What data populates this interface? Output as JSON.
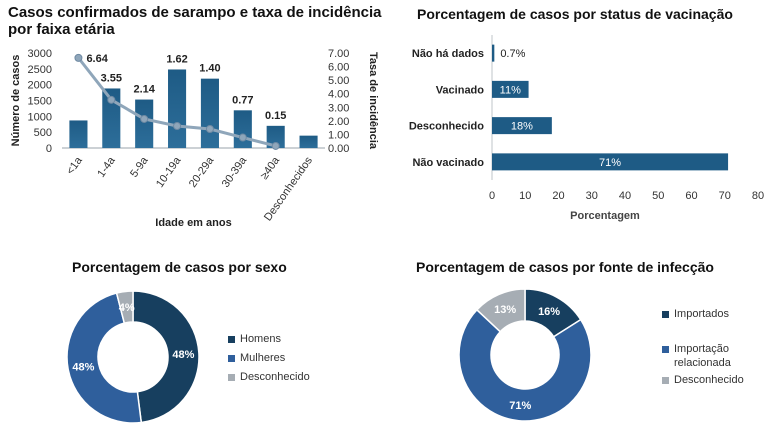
{
  "chart_data": [
    {
      "id": "age",
      "type": "bar",
      "title_lines": [
        "Casos confirmados de sarampo e  taxa de incidência",
        "por faixa etária"
      ],
      "categories": [
        "<1a",
        "1-4a",
        "5-9a",
        "10-19a",
        "20-29a",
        "30-39a",
        "≥40a",
        "Desconhecidos"
      ],
      "series": [
        {
          "kind": "bar",
          "axis": "left",
          "values": [
            870,
            1880,
            1530,
            2480,
            2190,
            1190,
            700,
            390
          ]
        },
        {
          "kind": "line",
          "axis": "right",
          "values": [
            6.64,
            3.55,
            2.14,
            1.62,
            1.4,
            0.77,
            0.15,
            null
          ],
          "labels": [
            "6.64",
            "3.55",
            "2.14",
            "1.62",
            "1.40",
            "0.77",
            "0.15",
            ""
          ]
        }
      ],
      "xlabel": "Idade em anos",
      "ylabel_left": "Número de casos",
      "ylabel_right": "Tasa de incidência",
      "ylim_left": [
        0,
        3000
      ],
      "yticks_left": [
        "0",
        "500",
        "1000",
        "1500",
        "2000",
        "2500",
        "3000"
      ],
      "ylim_right": [
        0,
        7
      ],
      "yticks_right": [
        "0.00",
        "1.00",
        "2.00",
        "3.00",
        "4.00",
        "5.00",
        "6.00",
        "7.00"
      ],
      "bar_color": "#1e5b85",
      "line_color": "#8fa6ba",
      "grid": false
    },
    {
      "id": "vacc",
      "type": "bar",
      "orientation": "horizontal",
      "title": "Porcentagem de casos por status de vacinação",
      "categories": [
        "Não há dados",
        "Vacinado",
        "Desconhecido",
        "Não vacinado"
      ],
      "values": [
        0.7,
        11,
        18,
        71
      ],
      "value_labels": [
        "0.7%",
        "11%",
        "18%",
        "71%"
      ],
      "xlim": [
        0,
        80
      ],
      "xticks": [
        "0",
        "10",
        "20",
        "30",
        "40",
        "50",
        "60",
        "70",
        "80"
      ],
      "xlabel": "Porcentagem",
      "bar_color": "#1e5b85",
      "grid": false
    },
    {
      "id": "sex",
      "type": "pie",
      "donut": true,
      "title": "Porcentagem de casos por sexo",
      "labels": [
        "Homens",
        "Mulheres",
        "Desconhecido"
      ],
      "values": [
        48,
        48,
        4
      ],
      "value_labels": [
        "48%",
        "48%",
        "4%"
      ],
      "colors": [
        "#173f5f",
        "#2f5f9c",
        "#a6adb4"
      ],
      "legend": "right"
    },
    {
      "id": "source",
      "type": "pie",
      "donut": true,
      "title": "Porcentagem de casos por fonte de infecção",
      "labels": [
        "Importados",
        "Importação relacionada",
        "Desconhecido"
      ],
      "legend_lines": [
        [
          "Importados"
        ],
        [
          "Importação",
          "relacionada"
        ],
        [
          "Desconhecido"
        ]
      ],
      "values": [
        16,
        71,
        13
      ],
      "value_labels": [
        "16%",
        "71%",
        "13%"
      ],
      "colors": [
        "#173f5f",
        "#2f5f9c",
        "#a6adb4"
      ],
      "legend": "right"
    }
  ]
}
